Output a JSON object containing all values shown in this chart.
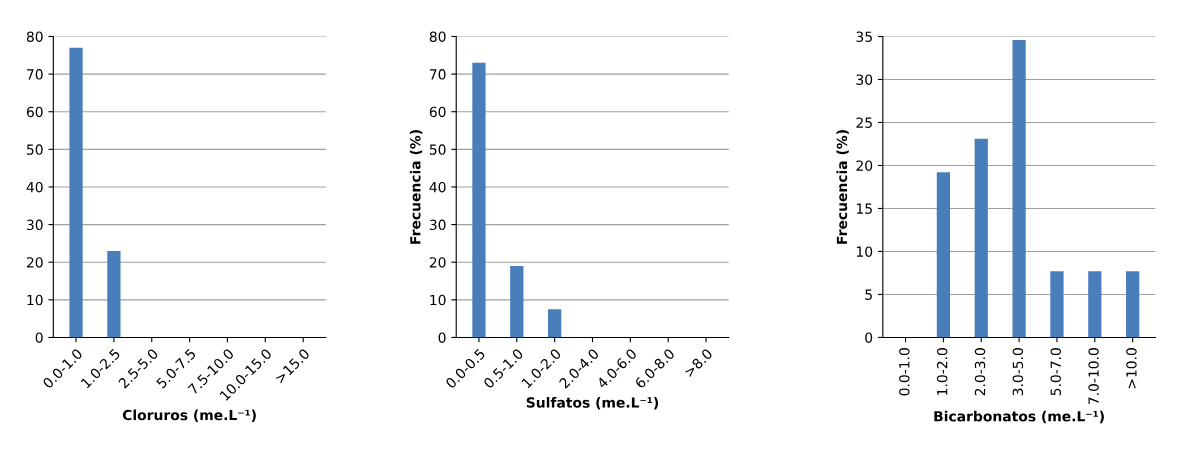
{
  "chart_data": [
    {
      "type": "bar",
      "xlabel": "Cloruros (me.L⁻¹)",
      "categories": [
        "0.0-1.0",
        "1.0-2.5",
        "2.5-5.0",
        "5.0-7.5",
        "7.5-10.0",
        "10.0-15.0",
        ">15.0"
      ],
      "values": [
        77,
        23,
        0,
        0,
        0,
        0,
        0
      ],
      "color": "#4a7ebb",
      "ylim": [
        0,
        80
      ],
      "yticks": [
        0,
        10,
        20,
        30,
        40,
        50,
        60,
        70,
        80
      ],
      "grid": "y"
    },
    {
      "type": "bar",
      "xlabel": "Sulfatos (me.L⁻¹)",
      "ylabel": "Frecuencia (%)",
      "categories": [
        "0.0-0.5",
        "0.5-1.0",
        "1.0-2.0",
        "2.0-4.0",
        "4.0-6.0",
        "6.0-8.0",
        ">8.0"
      ],
      "values": [
        73,
        19,
        7.5,
        0,
        0,
        0,
        0
      ],
      "color": "#4a7ebb",
      "ylim": [
        0,
        80
      ],
      "yticks": [
        0,
        10,
        20,
        30,
        40,
        50,
        60,
        70,
        80
      ],
      "grid": "y"
    },
    {
      "type": "bar",
      "xlabel": "Bicarbonatos (me.L⁻¹)",
      "ylabel": "Frecuencia (%)",
      "categories": [
        "0.0-1.0",
        "1.0-2.0",
        "2.0-3.0",
        "3.0-5.0",
        "5.0-7.0",
        "7.0-10.0",
        ">10.0"
      ],
      "values": [
        0,
        19.2,
        23.1,
        34.6,
        7.7,
        7.7,
        7.7
      ],
      "color": "#4a7ebb",
      "ylim": [
        0,
        35
      ],
      "yticks": [
        0,
        5,
        10,
        15,
        20,
        25,
        30,
        35
      ],
      "grid": "y"
    }
  ]
}
